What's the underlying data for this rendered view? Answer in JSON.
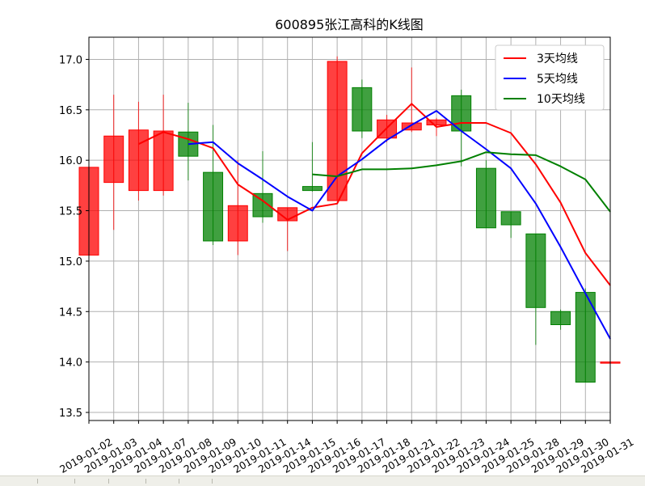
{
  "chart_data": {
    "type": "candlestick",
    "title": "600895张江高科的K线图",
    "xlabel": "",
    "ylabel": "",
    "ylim": [
      13.42,
      17.22
    ],
    "yticks": [
      13.5,
      14.0,
      14.5,
      15.0,
      15.5,
      16.0,
      16.5,
      17.0
    ],
    "ytick_labels": [
      "13.5",
      "14.0",
      "14.5",
      "15.0",
      "15.5",
      "16.0",
      "16.5",
      "17.0"
    ],
    "grid": true,
    "legend_position": "top-right",
    "colors": {
      "up": "#ff0000",
      "down": "#008000",
      "ma3": "#ff0000",
      "ma5": "#0000ff",
      "ma10": "#008000"
    },
    "categories": [
      "2019-01-02",
      "2019-01-03",
      "2019-01-04",
      "2019-01-07",
      "2019-01-08",
      "2019-01-09",
      "2019-01-10",
      "2019-01-11",
      "2019-01-14",
      "2019-01-15",
      "2019-01-16",
      "2019-01-17",
      "2019-01-18",
      "2019-01-21",
      "2019-01-22",
      "2019-01-23",
      "2019-01-24",
      "2019-01-25",
      "2019-01-28",
      "2019-01-29",
      "2019-01-30",
      "2019-01-31"
    ],
    "open": [
      15.06,
      15.78,
      15.7,
      15.7,
      16.28,
      15.88,
      15.2,
      15.67,
      15.4,
      15.74,
      15.6,
      16.72,
      16.22,
      16.3,
      16.35,
      16.64,
      15.92,
      15.49,
      15.27,
      14.5,
      14.69,
      14.0
    ],
    "close": [
      15.93,
      16.24,
      16.3,
      16.29,
      16.04,
      15.2,
      15.55,
      15.44,
      15.53,
      15.7,
      16.98,
      16.29,
      16.4,
      16.37,
      16.4,
      16.29,
      15.33,
      15.36,
      14.54,
      14.37,
      13.8,
      14.0
    ],
    "high": [
      16.0,
      16.65,
      16.58,
      16.65,
      16.57,
      16.35,
      16.0,
      16.09,
      15.53,
      16.18,
      17.03,
      16.8,
      16.45,
      16.92,
      16.42,
      16.7,
      16.0,
      15.49,
      15.27,
      14.52,
      14.73,
      14.1
    ],
    "low": [
      15.0,
      15.31,
      15.6,
      15.65,
      15.8,
      15.16,
      15.06,
      15.38,
      15.1,
      15.69,
      15.6,
      16.22,
      16.18,
      16.28,
      16.24,
      15.94,
      15.33,
      15.23,
      14.17,
      14.32,
      13.8,
      13.95
    ],
    "series": [
      {
        "name": "3天均线",
        "values": [
          null,
          null,
          16.16,
          16.28,
          16.21,
          16.12,
          15.76,
          15.6,
          15.41,
          15.53,
          15.57,
          16.07,
          16.32,
          16.56,
          16.33,
          16.37,
          16.37,
          16.27,
          15.96,
          15.58,
          15.08,
          14.76
        ]
      },
      {
        "name": "5天均线",
        "values": [
          null,
          null,
          null,
          null,
          16.16,
          16.18,
          15.97,
          15.81,
          15.64,
          15.5,
          15.84,
          16.01,
          16.2,
          16.35,
          16.49,
          16.29,
          16.11,
          15.92,
          15.57,
          15.14,
          14.68,
          14.23
        ]
      },
      {
        "name": "10天均线",
        "values": [
          null,
          null,
          null,
          null,
          null,
          null,
          null,
          null,
          null,
          15.86,
          15.84,
          15.91,
          15.91,
          15.92,
          15.95,
          15.99,
          16.08,
          16.06,
          16.05,
          15.94,
          15.81,
          15.49
        ]
      }
    ]
  }
}
